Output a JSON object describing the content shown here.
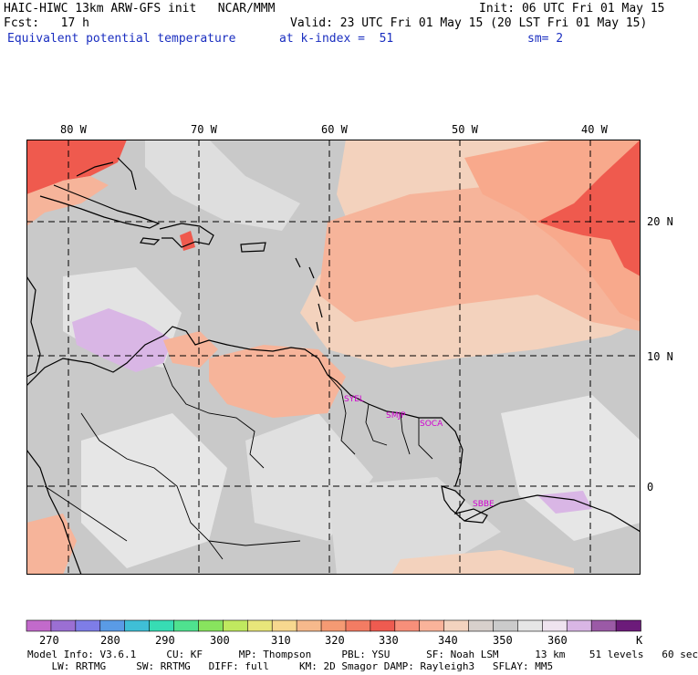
{
  "header": {
    "model_line": "HAIC-HIWC 13km ARW-GFS init   NCAR/MMM",
    "init": "Init: 06 UTC Fri 01 May 15",
    "fcst": "Fcst:   17 h",
    "valid": "Valid: 23 UTC Fri 01 May 15 (20 LST Fri 01 May 15)",
    "field": "Equivalent potential temperature",
    "level": "at k-index =  51",
    "smoothing": "sm= 2"
  },
  "map": {
    "longitude_labels": [
      "80 W",
      "70 W",
      "60 W",
      "50 W",
      "40 W"
    ],
    "latitude_labels": [
      "20 N",
      "10 N",
      "0"
    ],
    "stations": [
      "SYEL",
      "SMJP",
      "SOCA",
      "SBBE"
    ],
    "land_fill": "#c8c8c8"
  },
  "colorbar": {
    "labels": [
      "270",
      "280",
      "290",
      "300",
      "310",
      "320",
      "330",
      "340",
      "350",
      "360",
      "K"
    ],
    "colors": [
      "#c26acb",
      "#9b6fd3",
      "#7e7de7",
      "#5a9be6",
      "#3fbfd6",
      "#37dcb4",
      "#4fe28f",
      "#88e35e",
      "#c0e95f",
      "#e8e67a",
      "#f7d88f",
      "#f6b98c",
      "#f59a73",
      "#f37c63",
      "#ee5b50",
      "#f78f7a",
      "#fab39a",
      "#f3d3bf",
      "#d8d0cc",
      "#cbcbcb",
      "#e6e6e6",
      "#efe3ef",
      "#d9b6e5",
      "#9b5aa6",
      "#6c1b7a"
    ]
  },
  "footer": {
    "line1": "Model Info: V3.6.1     CU: KF      MP: Thompson     PBL: YSU      SF: Noah LSM      13 km    51 levels   60 sec",
    "line2": "    LW: RRTMG     SW: RRTMG   DIFF: full     KM: 2D Smagor DAMP: Rayleigh3   SFLAY: MM5"
  }
}
